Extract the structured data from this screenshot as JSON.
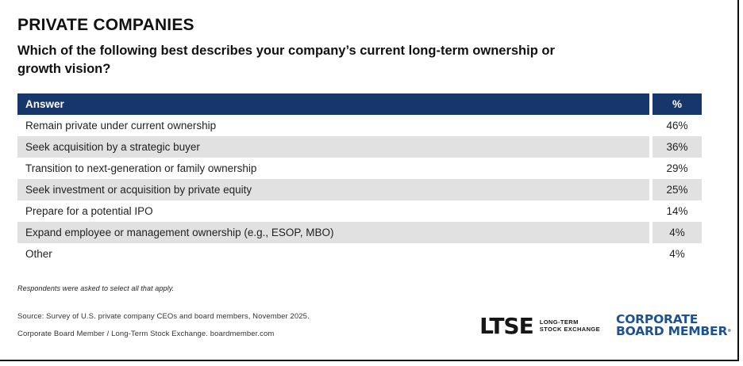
{
  "header": {
    "title": "PRIVATE COMPANIES",
    "question_line1": "Which of the following best describes your company’s current long-term ownership or",
    "question_line2": "growth vision?"
  },
  "chart_data": {
    "type": "table",
    "title": "PRIVATE COMPANIES",
    "subtitle": "Which of the following best describes your company’s current long-term ownership or growth vision?",
    "columns": [
      "Answer",
      "%"
    ],
    "categories": [
      "Remain private under current ownership",
      "Seek acquisition by a strategic buyer",
      "Transition to next-generation or family ownership",
      "Seek investment or acquisition by private equity",
      "Prepare for a potential IPO",
      "Expand employee or management ownership (e.g., ESOP, MBO)",
      "Other"
    ],
    "values": [
      46,
      36,
      29,
      25,
      14,
      4,
      4
    ],
    "display_values": [
      "46%",
      "36%",
      "29%",
      "25%",
      "14%",
      "4%",
      "4%"
    ],
    "value_format": "percent",
    "note": "Respondents were asked to select all that apply."
  },
  "footnote": "Respondents were asked to select all that apply.",
  "source": {
    "line1": "Source: Survey of U.S. private company CEOs and board members, November 2025.",
    "line2": "Corporate Board Member / Long-Term Stock Exchange. boardmember.com"
  },
  "logos": {
    "ltse": {
      "wordmark": "LTSE",
      "tagline_line1": "LONG-TERM",
      "tagline_line2": "STOCK EXCHANGE"
    },
    "cbm": {
      "line1": "CORPORATE",
      "line2": "BOARD MEMBER",
      "trademark": "®"
    }
  },
  "colors": {
    "header_bg": "#17366B",
    "row_alt_bg": "#E1E1E1",
    "cbm_blue": "#1D5291",
    "frame_black": "#111111"
  }
}
